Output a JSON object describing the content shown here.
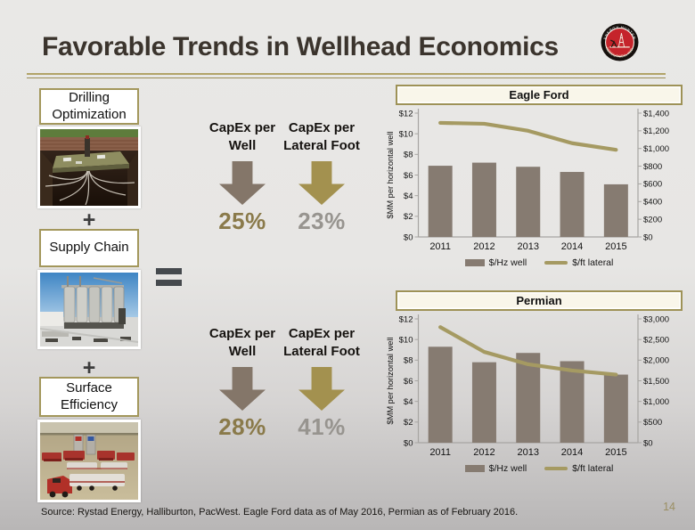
{
  "slide": {
    "title": "Favorable Trends in Wellhead Economics",
    "page_number": "14",
    "source_note": "Source: Rystad Energy, Halliburton, PacWest. Eagle Ford data as of May 2016, Permian as of February 2016.",
    "accent_gold": "#a3975c",
    "logo": {
      "arc_top": "ENERGY HUNTER",
      "arc_bottom": "RESOURCES, INC.",
      "ring_color": "#15100d",
      "center_color": "#c5242b"
    }
  },
  "left_column": {
    "plus_symbol": "+",
    "equals_symbol": "=",
    "items": [
      {
        "label": "Drilling Optimization",
        "photo": "drilling-pad-cutaway-illustration"
      },
      {
        "label": "Supply Chain",
        "photo": "proppant-silos-photo"
      },
      {
        "label": "Surface Efficiency",
        "photo": "frac-fleet-trucks-photo"
      }
    ]
  },
  "capex": {
    "arrow_colors": {
      "taupe": "#847669",
      "gold": "#a3914f"
    },
    "pct_colors": {
      "gold": "#8a7a4a",
      "gray": "#97948f"
    },
    "groups": [
      {
        "items": [
          {
            "label": "CapEx per Well",
            "pct": "25%"
          },
          {
            "label": "CapEx per Lateral Foot",
            "pct": "23%"
          }
        ]
      },
      {
        "items": [
          {
            "label": "CapEx per Well",
            "pct": "28%"
          },
          {
            "label": "CapEx per Lateral Foot",
            "pct": "41%"
          }
        ]
      }
    ]
  },
  "chart_data": [
    {
      "type": "bar",
      "subtype": "bar-line-combo",
      "title": "Eagle Ford",
      "categories": [
        "2011",
        "2012",
        "2013",
        "2014",
        "2015"
      ],
      "series": [
        {
          "name": "$/Hz well",
          "kind": "bar",
          "axis": "left",
          "color": "#867b71",
          "values": [
            6.9,
            7.2,
            6.8,
            6.3,
            5.1
          ]
        },
        {
          "name": "$/ft lateral",
          "kind": "line",
          "axis": "right",
          "color": "#a59a62",
          "values": [
            1290,
            1280,
            1200,
            1060,
            985
          ]
        }
      ],
      "left_axis": {
        "label": "$MM  per horizontal well",
        "min": 0,
        "max": 12,
        "ticks": [
          "$0",
          "$2",
          "$4",
          "$6",
          "$8",
          "$10",
          "$12"
        ]
      },
      "right_axis": {
        "min": 0,
        "max": 1400,
        "ticks": [
          "$0",
          "$200",
          "$400",
          "$600",
          "$800",
          "$1,000",
          "$1,200",
          "$1,400"
        ]
      },
      "grid": false,
      "legend_position": "bottom"
    },
    {
      "type": "bar",
      "subtype": "bar-line-combo",
      "title": "Permian",
      "categories": [
        "2011",
        "2012",
        "2013",
        "2014",
        "2015"
      ],
      "series": [
        {
          "name": "$/Hz well",
          "kind": "bar",
          "axis": "left",
          "color": "#867b71",
          "values": [
            9.3,
            7.8,
            8.7,
            7.9,
            6.6
          ]
        },
        {
          "name": "$/ft lateral",
          "kind": "line",
          "axis": "right",
          "color": "#a59a62",
          "values": [
            2800,
            2200,
            1900,
            1750,
            1650
          ]
        }
      ],
      "left_axis": {
        "label": "$MM  per horizontal well",
        "min": 0,
        "max": 12,
        "ticks": [
          "$0",
          "$2",
          "$4",
          "$6",
          "$8",
          "$10",
          "$12"
        ]
      },
      "right_axis": {
        "min": 0,
        "max": 3000,
        "ticks": [
          "$0",
          "$500",
          "$1,000",
          "$1,500",
          "$2,000",
          "$2,500",
          "$3,000"
        ]
      },
      "grid": false,
      "legend_position": "bottom"
    }
  ]
}
